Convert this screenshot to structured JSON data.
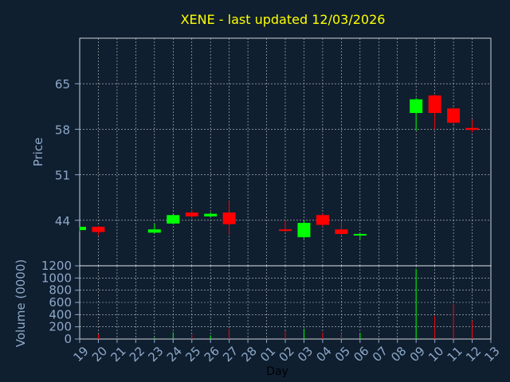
{
  "chart_data": {
    "title": "XENE - last updated 12/03/2026",
    "xlabel": "Day",
    "ylabel_price": "Price",
    "ylabel_volume": "Volume (0000)",
    "x_ticks": [
      "19",
      "20",
      "21",
      "22",
      "23",
      "24",
      "25",
      "26",
      "27",
      "28",
      "01",
      "02",
      "03",
      "04",
      "05",
      "06",
      "07",
      "08",
      "09",
      "10",
      "11",
      "12",
      "13"
    ],
    "price_ticks": [
      44,
      51,
      58,
      65
    ],
    "price_ylim": [
      37,
      72
    ],
    "volume_ticks": [
      0,
      200,
      400,
      600,
      800,
      1000,
      1200
    ],
    "volume_ylim": [
      0,
      1200
    ],
    "grid": true,
    "colors": {
      "up": "#00ff00",
      "down": "#ff0000",
      "title": "#ffff00",
      "axis": "#8fa8c8",
      "grid": "#c8c8c8",
      "background": "#0f1f30"
    },
    "type": "candlestick",
    "candles": [
      {
        "day": "19",
        "open": 42.5,
        "high": 43.0,
        "low": 42.3,
        "close": 43.0,
        "volume": 0
      },
      {
        "day": "20",
        "open": 43.0,
        "high": 43.1,
        "low": 41.7,
        "close": 42.2,
        "volume": 80
      },
      {
        "day": "23",
        "open": 42.1,
        "high": 43.5,
        "low": 42.0,
        "close": 42.6,
        "volume": 20
      },
      {
        "day": "24",
        "open": 43.5,
        "high": 45.0,
        "low": 43.4,
        "close": 44.8,
        "volume": 110
      },
      {
        "day": "25",
        "open": 45.2,
        "high": 45.6,
        "low": 44.2,
        "close": 44.6,
        "volume": 70
      },
      {
        "day": "26",
        "open": 44.6,
        "high": 45.2,
        "low": 44.5,
        "close": 45.0,
        "volume": 60
      },
      {
        "day": "27",
        "open": 45.2,
        "high": 47.0,
        "low": 41.8,
        "close": 43.4,
        "volume": 170
      },
      {
        "day": "02",
        "open": 42.6,
        "high": 44.0,
        "low": 42.2,
        "close": 42.5,
        "volume": 130
      },
      {
        "day": "03",
        "open": 41.4,
        "high": 44.0,
        "low": 41.2,
        "close": 43.6,
        "volume": 170
      },
      {
        "day": "04",
        "open": 44.8,
        "high": 45.0,
        "low": 43.0,
        "close": 43.3,
        "volume": 110
      },
      {
        "day": "05",
        "open": 42.6,
        "high": 43.8,
        "low": 41.6,
        "close": 41.9,
        "volume": 90
      },
      {
        "day": "06",
        "open": 41.7,
        "high": 42.0,
        "low": 41.1,
        "close": 41.9,
        "volume": 100
      },
      {
        "day": "09",
        "open": 60.5,
        "high": 62.8,
        "low": 57.8,
        "close": 62.6,
        "volume": 1150
      },
      {
        "day": "10",
        "open": 63.2,
        "high": 63.3,
        "low": 58.0,
        "close": 60.5,
        "volume": 380
      },
      {
        "day": "11",
        "open": 61.2,
        "high": 61.4,
        "low": 58.8,
        "close": 59.0,
        "volume": 570
      },
      {
        "day": "12",
        "open": 58.2,
        "high": 59.5,
        "low": 57.5,
        "close": 57.9,
        "volume": 300
      }
    ]
  }
}
